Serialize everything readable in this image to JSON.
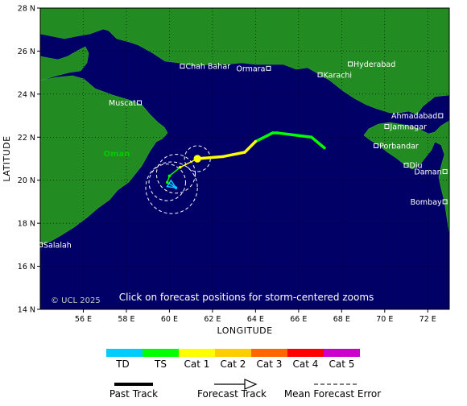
{
  "map": {
    "lon_range": [
      54,
      73
    ],
    "lat_range": [
      14,
      28
    ],
    "lon_ticks": [
      56,
      58,
      60,
      62,
      64,
      66,
      68,
      70,
      72
    ],
    "lat_ticks": [
      14,
      16,
      18,
      20,
      22,
      24,
      26,
      28
    ],
    "lon_tick_labels": [
      "56 E",
      "58 E",
      "60 E",
      "62 E",
      "64 E",
      "66 E",
      "68 E",
      "70 E",
      "72 E"
    ],
    "lat_tick_labels": [
      "14 N",
      "16 N",
      "18 N",
      "20 N",
      "22 N",
      "24 N",
      "26 N",
      "28 N"
    ],
    "xlabel": "LONGITUDE",
    "ylabel": "LATITUDE",
    "ocean_color": "#000066",
    "land_color": "#228B22",
    "copyright": "© UCL 2025",
    "notice": "Click on forecast positions for storm-centered zooms",
    "region_label": "Oman",
    "region_label_color": "#00cc00"
  },
  "cities": [
    {
      "name": "Chah Bahar",
      "lon": 60.6,
      "lat": 25.3
    },
    {
      "name": "Ormara",
      "lon": 64.6,
      "lat": 25.2
    },
    {
      "name": "Hyderabad",
      "lon": 68.4,
      "lat": 25.4
    },
    {
      "name": "Karachi",
      "lon": 67.0,
      "lat": 24.9
    },
    {
      "name": "Muscat",
      "lon": 58.6,
      "lat": 23.6
    },
    {
      "name": "Ahmadabad",
      "lon": 72.6,
      "lat": 23.0
    },
    {
      "name": "Jamnagar",
      "lon": 70.1,
      "lat": 22.5
    },
    {
      "name": "Porbandar",
      "lon": 69.6,
      "lat": 21.6
    },
    {
      "name": "Diu",
      "lon": 71.0,
      "lat": 20.7
    },
    {
      "name": "Daman",
      "lon": 72.8,
      "lat": 20.4
    },
    {
      "name": "Bombay",
      "lon": 72.8,
      "lat": 19.0
    },
    {
      "name": "Salalah",
      "lon": 54.0,
      "lat": 17.0
    }
  ],
  "track": {
    "past": [
      {
        "lon": 67.2,
        "lat": 21.5,
        "intensity": "TS"
      },
      {
        "lon": 66.6,
        "lat": 22.0,
        "intensity": "TS"
      },
      {
        "lon": 65.0,
        "lat": 22.2,
        "intensity": "TS"
      },
      {
        "lon": 64.8,
        "lat": 22.2,
        "intensity": "TS"
      },
      {
        "lon": 64.0,
        "lat": 21.8,
        "intensity": "TS"
      },
      {
        "lon": 63.5,
        "lat": 21.3,
        "intensity": "Cat 1"
      },
      {
        "lon": 62.5,
        "lat": 21.1,
        "intensity": "Cat 1"
      },
      {
        "lon": 61.3,
        "lat": 21.0,
        "intensity": "Cat 1"
      }
    ],
    "forecast": [
      {
        "lon": 61.3,
        "lat": 21.0,
        "intensity": "Cat 1"
      },
      {
        "lon": 60.5,
        "lat": 20.6,
        "intensity": "Cat 1"
      },
      {
        "lon": 60.0,
        "lat": 20.2,
        "intensity": "TS"
      },
      {
        "lon": 59.9,
        "lat": 19.9,
        "intensity": "TS"
      },
      {
        "lon": 60.3,
        "lat": 19.65,
        "intensity": "TD"
      }
    ],
    "current_position": {
      "lon": 61.3,
      "lat": 21.0
    },
    "error_circles": [
      {
        "lon": 61.3,
        "lat": 21.0,
        "radius_deg": 0.6
      },
      {
        "lon": 60.3,
        "lat": 20.3,
        "radius_deg": 0.9
      },
      {
        "lon": 59.9,
        "lat": 19.9,
        "radius_deg": 0.85
      },
      {
        "lon": 60.1,
        "lat": 19.65,
        "radius_deg": 1.2
      }
    ]
  },
  "legend": {
    "categories": [
      {
        "label": "TD",
        "color": "#00ccff"
      },
      {
        "label": "TS",
        "color": "#00ff00"
      },
      {
        "label": "Cat 1",
        "color": "#ffff00"
      },
      {
        "label": "Cat 2",
        "color": "#ffcc00"
      },
      {
        "label": "Cat 3",
        "color": "#ff6600"
      },
      {
        "label": "Cat 4",
        "color": "#ff0000"
      },
      {
        "label": "Cat 5",
        "color": "#cc00cc"
      }
    ],
    "past_track_label": "Past Track",
    "forecast_track_label": "Forecast Track",
    "error_label": "Mean Forecast Error"
  }
}
